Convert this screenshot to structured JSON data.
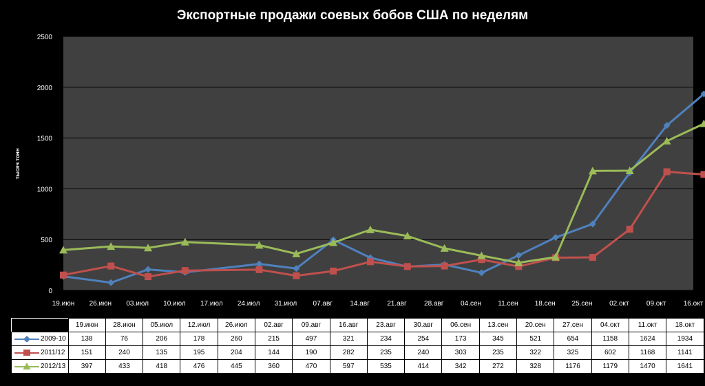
{
  "chart_data": {
    "type": "line",
    "title": "Экспортные продажи соевых бобов США по неделям",
    "ylabel": "тысяч тонн",
    "xlabel": "",
    "ylim": [
      0,
      2500
    ],
    "yticks": [
      "0",
      "500",
      "1000",
      "1500",
      "2000",
      "2500"
    ],
    "grid": "horizontal",
    "legend": "table-below",
    "x_tick_labels": [
      "19.июн",
      "26.июн",
      "03.июл",
      "10.июл",
      "17.июл",
      "24.июл",
      "31.июл",
      "07.авг",
      "14.авг",
      "21.авг",
      "28.авг",
      "04.сен",
      "11.сен",
      "18.сен",
      "25.сен",
      "02.окт",
      "09.окт",
      "16.окт"
    ],
    "series": [
      {
        "name": "2009-10",
        "color": "#4F81BD",
        "marker": "diamond",
        "dates": [
          "19.июн",
          "28.июн",
          "05.июл",
          "12.июл",
          "26.июл",
          "02.авг",
          "09.авг",
          "16.авг",
          "23.авг",
          "30.авг",
          "06.сен",
          "13.сен",
          "20.сен",
          "27.сен",
          "04.окт",
          "11.окт",
          "18.окт"
        ],
        "values": [
          138,
          76,
          206,
          178,
          260,
          215,
          497,
          321,
          234,
          254,
          173,
          345,
          521,
          654,
          1158,
          1624,
          1934
        ]
      },
      {
        "name": "2011/12",
        "color": "#C0504D",
        "marker": "square",
        "dates": [
          "19.июн",
          "28.июн",
          "05.июл",
          "12.июл",
          "26.июл",
          "02.авг",
          "09.авг",
          "16.авг",
          "23.авг",
          "30.авг",
          "06.сен",
          "13.сен",
          "20.сен",
          "27.сен",
          "04.окт",
          "11.окт",
          "18.окт"
        ],
        "values": [
          151,
          240,
          135,
          195,
          204,
          144,
          190,
          282,
          235,
          240,
          303,
          235,
          322,
          325,
          602,
          1168,
          1141
        ]
      },
      {
        "name": "2012/13",
        "color": "#9BBB59",
        "marker": "triangle",
        "dates": [
          "19.июн",
          "28.июн",
          "05.июл",
          "12.июл",
          "26.июл",
          "02.авг",
          "09.авг",
          "16.авг",
          "23.авг",
          "30.авг",
          "06.сен",
          "13.сен",
          "20.сен",
          "27.сен",
          "04.окт",
          "11.окт",
          "18.окт"
        ],
        "values": [
          397,
          433,
          418,
          476,
          445,
          360,
          470,
          597,
          535,
          414,
          342,
          272,
          328,
          1176,
          1179,
          1470,
          1641
        ]
      }
    ],
    "table": {
      "headers": [
        "19.июн",
        "28.июн",
        "05.июл",
        "12.июл",
        "26.июл",
        "02.авг",
        "09.авг",
        "16.авг",
        "23.авг",
        "30.авг",
        "06.сен",
        "13.сен",
        "20.сен",
        "27.сен",
        "04.окт",
        "11.окт",
        "18.окт"
      ],
      "rows": [
        {
          "name": "2009-10",
          "values": [
            "138",
            "76",
            "206",
            "178",
            "260",
            "215",
            "497",
            "321",
            "234",
            "254",
            "173",
            "345",
            "521",
            "654",
            "1158",
            "1624",
            "1934"
          ]
        },
        {
          "name": "2011/12",
          "values": [
            "151",
            "240",
            "135",
            "195",
            "204",
            "144",
            "190",
            "282",
            "235",
            "240",
            "303",
            "235",
            "322",
            "325",
            "602",
            "1168",
            "1141"
          ]
        },
        {
          "name": "2012/13",
          "values": [
            "397",
            "433",
            "418",
            "476",
            "445",
            "360",
            "470",
            "597",
            "535",
            "414",
            "342",
            "272",
            "328",
            "1176",
            "1179",
            "1470",
            "1641"
          ]
        }
      ]
    }
  },
  "colors": {
    "background": "#000000",
    "plot_area": "#404040",
    "gridline": "#000000",
    "text": "#ffffff"
  }
}
